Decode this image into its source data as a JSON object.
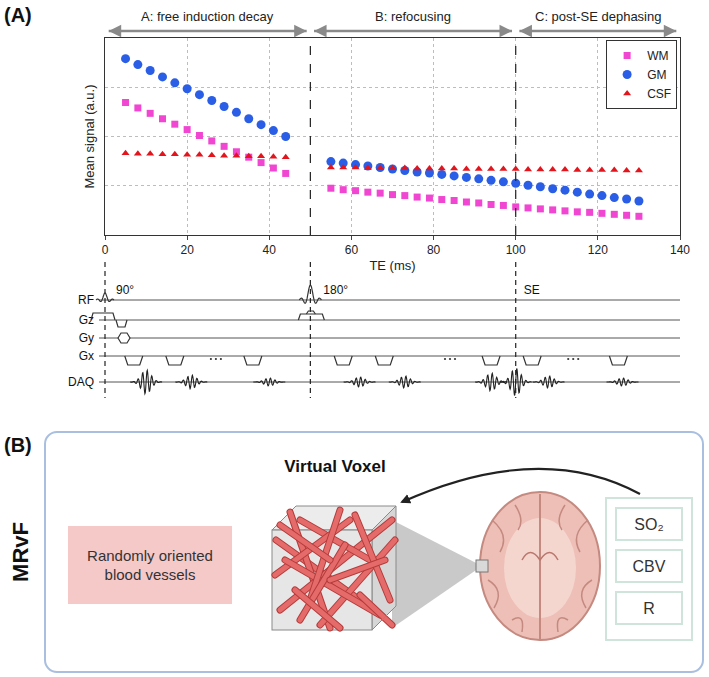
{
  "panel_labels": [
    "(A)",
    "(B)"
  ],
  "chart_data": {
    "type": "scatter",
    "xlabel": "TE (ms)",
    "ylabel": "Mean signal (a.u.)",
    "x": [
      5,
      8,
      11,
      14,
      17,
      20,
      23,
      26,
      29,
      32,
      35,
      38,
      41,
      44,
      55,
      58,
      61,
      64,
      67,
      70,
      73,
      76,
      79,
      82,
      85,
      88,
      91,
      94,
      97,
      100,
      103,
      106,
      109,
      112,
      115,
      118,
      121,
      124,
      127,
      130
    ],
    "series": [
      {
        "name": "WM",
        "color": "#f046d2",
        "marker": "square",
        "values": [
          2.69,
          2.58,
          2.47,
          2.36,
          2.25,
          2.14,
          2.02,
          1.91,
          1.8,
          1.69,
          1.58,
          1.47,
          1.36,
          1.25,
          0.95,
          0.92,
          0.9,
          0.87,
          0.85,
          0.82,
          0.8,
          0.77,
          0.75,
          0.72,
          0.7,
          0.67,
          0.65,
          0.62,
          0.6,
          0.57,
          0.55,
          0.53,
          0.51,
          0.49,
          0.47,
          0.46,
          0.44,
          0.42,
          0.4,
          0.38
        ]
      },
      {
        "name": "GM",
        "color": "#2a5ee6",
        "marker": "circle",
        "values": [
          3.58,
          3.46,
          3.34,
          3.21,
          3.09,
          2.97,
          2.85,
          2.73,
          2.61,
          2.49,
          2.36,
          2.24,
          2.12,
          2.0,
          1.49,
          1.46,
          1.43,
          1.4,
          1.37,
          1.34,
          1.31,
          1.28,
          1.26,
          1.23,
          1.2,
          1.17,
          1.14,
          1.11,
          1.08,
          1.05,
          1.01,
          0.98,
          0.94,
          0.91,
          0.87,
          0.83,
          0.8,
          0.76,
          0.73,
          0.69
        ]
      },
      {
        "name": "CSF",
        "color": "#e3141c",
        "marker": "triangle-up",
        "values": [
          1.66,
          1.65,
          1.65,
          1.64,
          1.64,
          1.63,
          1.63,
          1.62,
          1.61,
          1.61,
          1.6,
          1.6,
          1.59,
          1.58,
          1.37,
          1.37,
          1.37,
          1.36,
          1.36,
          1.36,
          1.36,
          1.35,
          1.35,
          1.35,
          1.35,
          1.34,
          1.34,
          1.34,
          1.34,
          1.34,
          1.33,
          1.33,
          1.33,
          1.33,
          1.32,
          1.32,
          1.32,
          1.32,
          1.31,
          1.31
        ]
      }
    ],
    "xlim": [
      0,
      140
    ],
    "xticks": [
      0,
      20,
      40,
      60,
      80,
      100,
      120,
      140
    ],
    "ylim": [
      0,
      4
    ],
    "yticks": [
      0,
      1,
      2,
      3,
      4
    ],
    "tick_labels": "x",
    "grid": true,
    "legend": "top right",
    "sections": [
      {
        "label": "A: free induction decay",
        "from": 0,
        "to": 50
      },
      {
        "label": "B: refocusing",
        "from": 50,
        "to": 100
      },
      {
        "label": "C: post-SE dephasing",
        "from": 100,
        "to": 140
      }
    ]
  },
  "pulse_sequence": {
    "rows": [
      "RF",
      "Gz",
      "Gy",
      "Gx",
      "DAQ"
    ],
    "pulse_labels": [
      {
        "label": "90°",
        "at": 0
      },
      {
        "label": "180°",
        "at": 50
      },
      {
        "label": "SE",
        "at": 100
      }
    ]
  },
  "panel_b": {
    "side_label": "MRvF",
    "title": "Virtual Voxel",
    "description": "Randomly oriented blood vessels",
    "parameters": [
      "SO₂",
      "CBV",
      "R"
    ]
  }
}
